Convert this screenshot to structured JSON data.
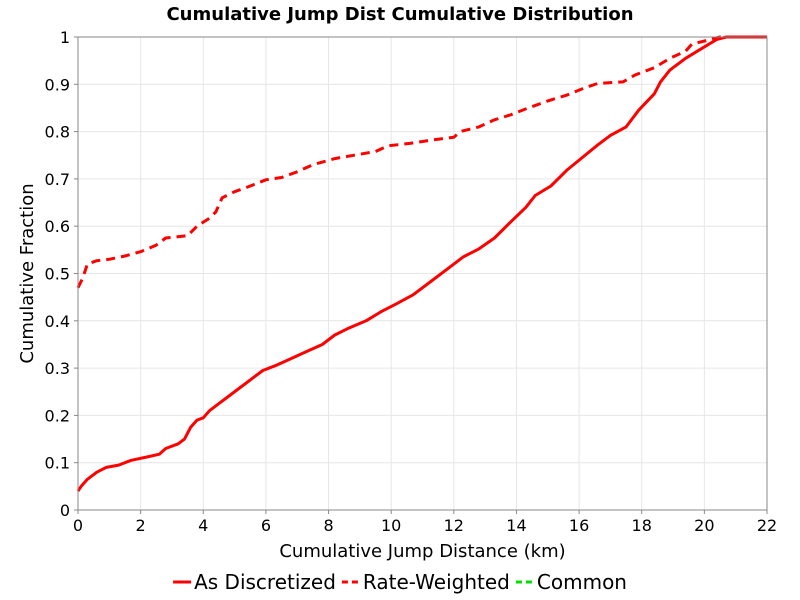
{
  "chart_data": {
    "type": "line",
    "title": "Cumulative Jump Dist Cumulative Distribution",
    "xlabel": "Cumulative Jump Distance (km)",
    "ylabel": "Cumulative Fraction",
    "xlim": [
      0,
      22
    ],
    "ylim": [
      0,
      1
    ],
    "xticks": [
      0,
      2,
      4,
      6,
      8,
      10,
      12,
      14,
      16,
      18,
      20,
      22
    ],
    "yticks": [
      0,
      0.1,
      0.2,
      0.3,
      0.4,
      0.5,
      0.6,
      0.7,
      0.8,
      0.9,
      1
    ],
    "grid": true,
    "legend_position": "bottom",
    "series": [
      {
        "name": "As Discretized",
        "color": "#ff0000",
        "dash": "solid",
        "points": [
          [
            0,
            0.04
          ],
          [
            0.1,
            0.05
          ],
          [
            0.3,
            0.065
          ],
          [
            0.6,
            0.08
          ],
          [
            0.9,
            0.09
          ],
          [
            1.3,
            0.095
          ],
          [
            1.7,
            0.105
          ],
          [
            2.2,
            0.112
          ],
          [
            2.6,
            0.118
          ],
          [
            2.8,
            0.13
          ],
          [
            3.2,
            0.14
          ],
          [
            3.4,
            0.15
          ],
          [
            3.6,
            0.175
          ],
          [
            3.8,
            0.19
          ],
          [
            4.0,
            0.195
          ],
          [
            4.2,
            0.21
          ],
          [
            4.5,
            0.225
          ],
          [
            4.8,
            0.24
          ],
          [
            5.2,
            0.26
          ],
          [
            5.6,
            0.28
          ],
          [
            5.9,
            0.295
          ],
          [
            6.3,
            0.305
          ],
          [
            6.8,
            0.32
          ],
          [
            7.3,
            0.335
          ],
          [
            7.8,
            0.35
          ],
          [
            8.2,
            0.37
          ],
          [
            8.6,
            0.383
          ],
          [
            9.2,
            0.4
          ],
          [
            9.7,
            0.42
          ],
          [
            10.2,
            0.437
          ],
          [
            10.7,
            0.455
          ],
          [
            11.2,
            0.48
          ],
          [
            11.8,
            0.51
          ],
          [
            12.3,
            0.535
          ],
          [
            12.8,
            0.552
          ],
          [
            13.3,
            0.575
          ],
          [
            13.8,
            0.608
          ],
          [
            14.3,
            0.64
          ],
          [
            14.6,
            0.665
          ],
          [
            15.1,
            0.685
          ],
          [
            15.6,
            0.718
          ],
          [
            16.1,
            0.745
          ],
          [
            16.6,
            0.772
          ],
          [
            17.0,
            0.792
          ],
          [
            17.5,
            0.81
          ],
          [
            17.9,
            0.845
          ],
          [
            18.4,
            0.88
          ],
          [
            18.6,
            0.905
          ],
          [
            18.9,
            0.93
          ],
          [
            19.4,
            0.955
          ],
          [
            19.9,
            0.975
          ],
          [
            20.4,
            0.995
          ],
          [
            20.7,
            1.0
          ],
          [
            22,
            1.0
          ]
        ]
      },
      {
        "name": "Rate-Weighted",
        "color": "#ff0000",
        "dash": "dashed",
        "points": [
          [
            0,
            0.47
          ],
          [
            0.15,
            0.49
          ],
          [
            0.3,
            0.52
          ],
          [
            0.6,
            0.527
          ],
          [
            1.0,
            0.53
          ],
          [
            1.5,
            0.537
          ],
          [
            2.0,
            0.546
          ],
          [
            2.5,
            0.56
          ],
          [
            2.8,
            0.575
          ],
          [
            3.5,
            0.58
          ],
          [
            3.8,
            0.6
          ],
          [
            4.2,
            0.617
          ],
          [
            4.4,
            0.63
          ],
          [
            4.6,
            0.66
          ],
          [
            5.0,
            0.673
          ],
          [
            5.5,
            0.685
          ],
          [
            6.0,
            0.698
          ],
          [
            6.5,
            0.703
          ],
          [
            7.0,
            0.715
          ],
          [
            7.5,
            0.73
          ],
          [
            8.2,
            0.743
          ],
          [
            8.8,
            0.75
          ],
          [
            9.5,
            0.758
          ],
          [
            9.9,
            0.77
          ],
          [
            10.6,
            0.775
          ],
          [
            11.4,
            0.783
          ],
          [
            12.0,
            0.788
          ],
          [
            12.2,
            0.8
          ],
          [
            12.8,
            0.81
          ],
          [
            13.3,
            0.825
          ],
          [
            13.8,
            0.835
          ],
          [
            14.3,
            0.848
          ],
          [
            15.0,
            0.865
          ],
          [
            15.6,
            0.877
          ],
          [
            16.2,
            0.893
          ],
          [
            16.6,
            0.902
          ],
          [
            17.4,
            0.905
          ],
          [
            17.8,
            0.92
          ],
          [
            18.4,
            0.935
          ],
          [
            18.9,
            0.955
          ],
          [
            19.4,
            0.97
          ],
          [
            19.6,
            0.985
          ],
          [
            20.1,
            0.993
          ],
          [
            20.5,
            1.0
          ],
          [
            22,
            1.0
          ]
        ]
      },
      {
        "name": "Common",
        "color": "#00dd00",
        "dash": "dashed",
        "points": []
      }
    ]
  }
}
